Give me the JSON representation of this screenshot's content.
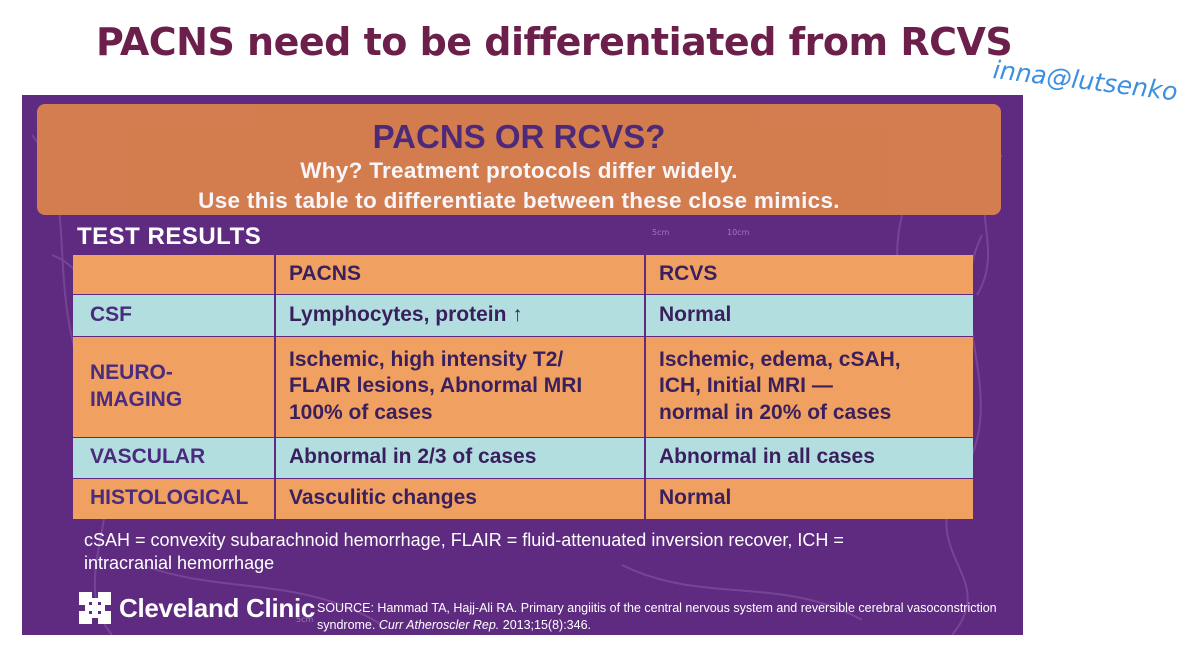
{
  "slide": {
    "title": "PACNS need to be differentiated  from RCVS",
    "watermark": "inna@lutsenko"
  },
  "infographic": {
    "header": {
      "title": "PACNS OR RCVS?",
      "line1": "Why? Treatment protocols differ widely.",
      "line2": "Use this table to differentiate between these close mimics."
    },
    "section_title": "TEST RESULTS",
    "table": {
      "columns": [
        "",
        "PACNS",
        "RCVS"
      ],
      "rows": [
        {
          "label": [
            "CSF"
          ],
          "pacns": [
            "Lymphocytes, protein ↑"
          ],
          "rcvs": [
            "Normal"
          ]
        },
        {
          "label": [
            "NEURO-",
            "IMAGING"
          ],
          "pacns": [
            "Ischemic, high intensity T2/",
            "FLAIR lesions, Abnormal MRI",
            "100% of cases"
          ],
          "rcvs": [
            "Ischemic, edema, cSAH,",
            "ICH, Initial MRI —",
            "normal in 20% of cases"
          ]
        },
        {
          "label": [
            "VASCULAR"
          ],
          "pacns": [
            "Abnormal in 2/3 of cases"
          ],
          "rcvs": [
            "Abnormal in all cases"
          ]
        },
        {
          "label": [
            "HISTOLOGICAL"
          ],
          "pacns": [
            "Vasculitic changes"
          ],
          "rcvs": [
            "Normal"
          ]
        }
      ]
    },
    "footnote": [
      "cSAH = convexity subarachnoid hemorrhage, FLAIR = fluid-attenuated inversion recover, ICH =",
      "intracranial hemorrhage"
    ],
    "logo": {
      "text": "Cleveland Clinic",
      "icon": "cleveland-clinic-logo-icon"
    },
    "source": {
      "line1": "SOURCE: Hammad TA, Hajj-Ali RA. Primary angiitis of the central nervous system and reversible cerebral vasoconstriction",
      "line2_prefix": "syndrome. ",
      "journal": "Curr Atheroscler Rep.",
      "line2_suffix": " 2013;15(8):346."
    },
    "background_marks": [
      "5cm",
      "10cm",
      "5cm"
    ]
  },
  "colors": {
    "title": "#6b1f4a",
    "watermark": "#3a8fe0",
    "background": "#5e2b80",
    "header_box": "#d8814e",
    "header_title": "#4c2a79",
    "row_orange": "#f0a060",
    "row_teal": "#b2dedf",
    "table_text": "#3a1f5e"
  }
}
